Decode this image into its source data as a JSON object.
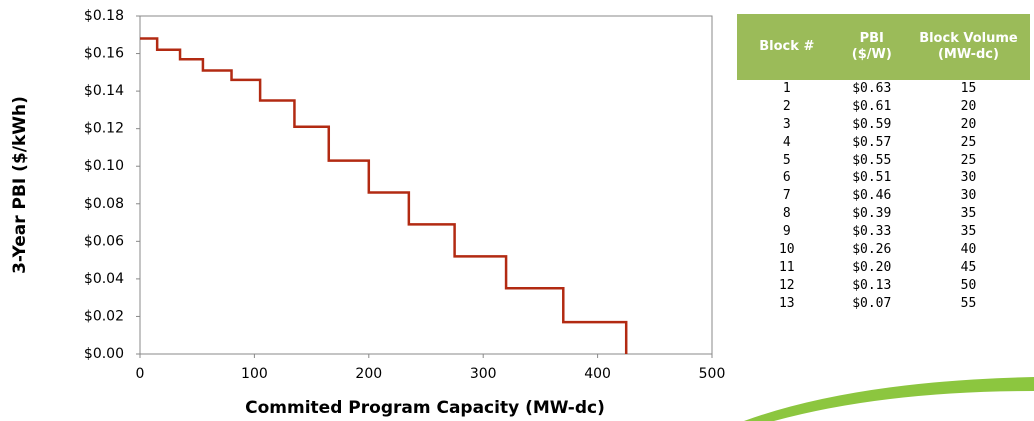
{
  "chart_data": {
    "type": "line",
    "step": "post",
    "x": [
      0,
      15,
      35,
      55,
      80,
      105,
      135,
      165,
      200,
      235,
      275,
      320,
      370,
      425
    ],
    "values": [
      0.168,
      0.162,
      0.157,
      0.151,
      0.146,
      0.135,
      0.121,
      0.103,
      0.086,
      0.069,
      0.052,
      0.035,
      0.017,
      0
    ],
    "color": "#b22a12",
    "xlabel": "Commited Program Capacity (MW-dc)",
    "ylabel": "3-Year PBI ($/kWh)",
    "xlim": [
      0,
      500
    ],
    "xticks": [
      0,
      100,
      200,
      300,
      400,
      500
    ],
    "ylim": [
      0,
      0.18
    ],
    "yticks": [
      {
        "value": 0,
        "label": "$0.00"
      },
      {
        "value": 0.02,
        "label": "$0.02"
      },
      {
        "value": 0.04,
        "label": "$0.04"
      },
      {
        "value": 0.06,
        "label": "$0.06"
      },
      {
        "value": 0.08,
        "label": "$0.08"
      },
      {
        "value": 0.1,
        "label": "$0.10"
      },
      {
        "value": 0.12,
        "label": "$0.12"
      },
      {
        "value": 0.14,
        "label": "$0.14"
      },
      {
        "value": 0.16,
        "label": "$0.16"
      },
      {
        "value": 0.18,
        "label": "$0.18"
      }
    ],
    "grid": false
  },
  "table": {
    "header": [
      "Block #",
      "PBI ($/W)",
      "Block Volume (MW-dc)"
    ],
    "rows": [
      [
        "1",
        "$0.63",
        "15"
      ],
      [
        "2",
        "$0.61",
        "20"
      ],
      [
        "3",
        "$0.59",
        "20"
      ],
      [
        "4",
        "$0.57",
        "25"
      ],
      [
        "5",
        "$0.55",
        "25"
      ],
      [
        "6",
        "$0.51",
        "30"
      ],
      [
        "7",
        "$0.46",
        "30"
      ],
      [
        "8",
        "$0.39",
        "35"
      ],
      [
        "9",
        "$0.33",
        "35"
      ],
      [
        "10",
        "$0.26",
        "40"
      ],
      [
        "11",
        "$0.20",
        "45"
      ],
      [
        "12",
        "$0.13",
        "50"
      ],
      [
        "13",
        "$0.07",
        "55"
      ]
    ]
  }
}
